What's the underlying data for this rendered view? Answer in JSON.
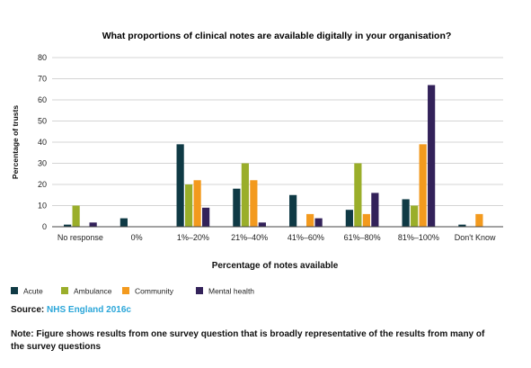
{
  "chart_data": {
    "type": "bar",
    "title": "What proportions of clinical notes are available digitally in your organisation?",
    "xlabel": "Percentage of notes available",
    "ylabel": "Percentage of trusts",
    "ylim": [
      0,
      80
    ],
    "yticks": [
      0,
      10,
      20,
      30,
      40,
      50,
      60,
      70,
      80
    ],
    "grid": true,
    "legend_position": "bottom-left",
    "categories": [
      "No response",
      "0%",
      "1%–20%",
      "21%–40%",
      "41%–60%",
      "61%–80%",
      "81%–100%",
      "Don't Know"
    ],
    "series": [
      {
        "name": "Acute",
        "color": "#0f3a45",
        "values": [
          1,
          4,
          39,
          18,
          15,
          8,
          13,
          1
        ]
      },
      {
        "name": "Ambulance",
        "color": "#9aae2a",
        "values": [
          10,
          0,
          20,
          30,
          0,
          30,
          10,
          0
        ]
      },
      {
        "name": "Community",
        "color": "#f39a1e",
        "values": [
          0,
          0,
          22,
          22,
          6,
          6,
          39,
          6
        ]
      },
      {
        "name": "Mental health",
        "color": "#33225a",
        "values": [
          2,
          0,
          9,
          2,
          4,
          16,
          67,
          0
        ]
      }
    ]
  },
  "source": {
    "label": "Source:",
    "link_text": "NHS England 2016c"
  },
  "note": "Note: Figure shows results from one survey question that is broadly representative of the results from many of the survey questions"
}
